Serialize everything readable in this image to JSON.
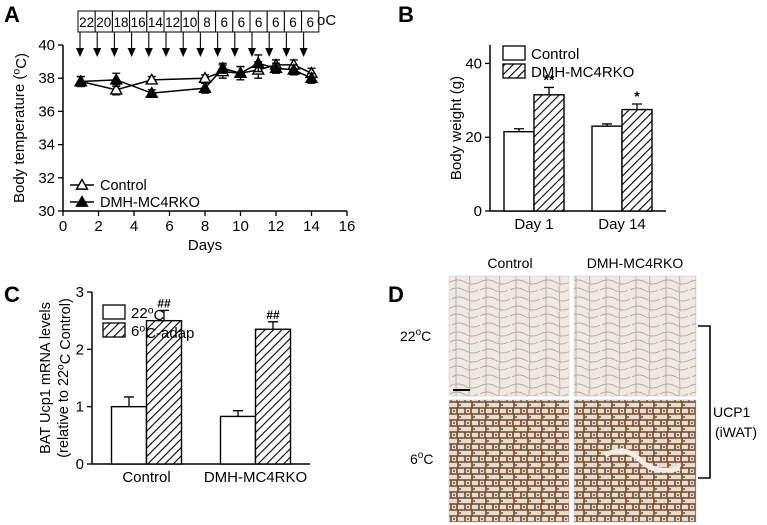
{
  "figure": {
    "panel_labels": {
      "a": "A",
      "b": "B",
      "c": "C",
      "d": "D"
    },
    "temp_schedule": {
      "values": [
        "22",
        "20",
        "18",
        "16",
        "14",
        "12",
        "10",
        "8",
        "6",
        "6",
        "6",
        "6",
        "6",
        "6"
      ],
      "unit": "oC"
    },
    "panel_d": {
      "col_labels": [
        "Control",
        "DMH-MC4RKO"
      ],
      "row_labels": [
        "22oC",
        "6oC"
      ],
      "side_label_1": "UCP1",
      "side_label_2": "(iWAT)"
    }
  },
  "chart_data": [
    {
      "panel": "A",
      "type": "line",
      "ylabel": "Body temperature (oC)",
      "xlabel": "Days",
      "xlim": [
        0,
        16
      ],
      "ylim": [
        30,
        40
      ],
      "xticks": [
        0,
        2,
        4,
        6,
        8,
        10,
        12,
        14,
        16
      ],
      "yticks": [
        30,
        32,
        34,
        36,
        38,
        40
      ],
      "legend_position": "bottom-left",
      "series": [
        {
          "name": "Control",
          "marker": "open-triangle",
          "x": [
            1,
            3,
            5,
            8,
            9,
            10,
            11,
            12,
            13,
            14
          ],
          "y": [
            37.8,
            37.3,
            37.9,
            38.0,
            38.4,
            38.3,
            38.5,
            38.8,
            38.8,
            38.3
          ],
          "err": [
            0.3,
            0.3,
            0.2,
            0.2,
            0.4,
            0.4,
            0.5,
            0.3,
            0.3,
            0.3
          ]
        },
        {
          "name": "DMH-MC4RKO",
          "marker": "filled-triangle",
          "x": [
            1,
            3,
            5,
            8,
            9,
            10,
            11,
            12,
            13,
            14
          ],
          "y": [
            37.8,
            37.9,
            37.1,
            37.4,
            38.6,
            38.3,
            38.9,
            38.6,
            38.5,
            38.0
          ],
          "err": [
            0.3,
            0.4,
            0.2,
            0.3,
            0.3,
            0.4,
            0.5,
            0.3,
            0.3,
            0.3
          ]
        }
      ]
    },
    {
      "panel": "B",
      "type": "bar",
      "ylabel": "Body weight (g)",
      "categories": [
        "Day 1",
        "Day 14"
      ],
      "ylim": [
        0,
        45
      ],
      "yticks": [
        0,
        20,
        40
      ],
      "legend_position": "top-left",
      "series": [
        {
          "name": "Control",
          "fill": "open",
          "values": [
            21.5,
            23.0
          ],
          "err": [
            0.8,
            0.6
          ]
        },
        {
          "name": "DMH-MC4RKO",
          "fill": "hatched",
          "values": [
            31.5,
            27.5
          ],
          "err": [
            2.0,
            1.5
          ]
        }
      ],
      "annotations": [
        "**",
        "*"
      ]
    },
    {
      "panel": "C",
      "type": "bar",
      "ylabel_line1": "BAT Ucp1 mRNA levels",
      "ylabel_line2": "(relative to 22oC Control)",
      "categories": [
        "Control",
        "DMH-MC4RKO"
      ],
      "ylim": [
        0,
        3
      ],
      "yticks": [
        0,
        1,
        2,
        3
      ],
      "legend_position": "top-left",
      "series": [
        {
          "name": "22oC",
          "fill": "open",
          "values": [
            1.0,
            0.83
          ],
          "err": [
            0.17,
            0.1
          ]
        },
        {
          "name": "6oC-adap",
          "fill": "hatched",
          "values": [
            2.5,
            2.35
          ],
          "err": [
            0.18,
            0.13
          ]
        }
      ],
      "annotations": [
        "##",
        "##"
      ]
    }
  ]
}
